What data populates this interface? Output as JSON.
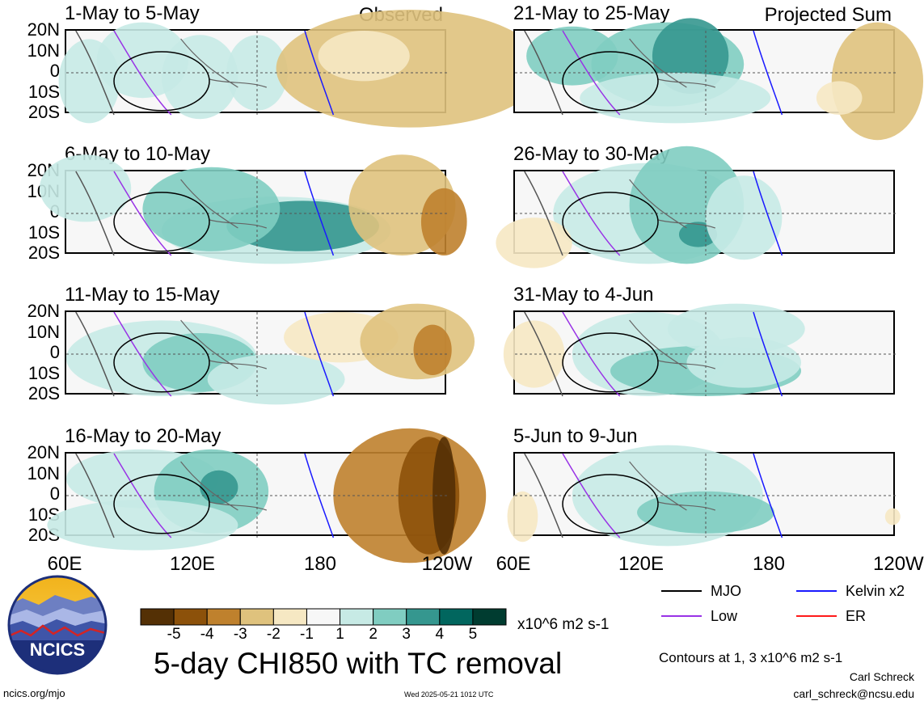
{
  "chart_data": [
    {
      "type": "heatmap",
      "title": "1-May to 5-May",
      "label": "Observed",
      "lat_ticks": [
        "20N",
        "10N",
        "0",
        "10S",
        "20S"
      ],
      "lon_ticks": [
        "60E",
        "120E",
        "180",
        "120W"
      ]
    },
    {
      "type": "heatmap",
      "title": "6-May to 10-May",
      "label": "",
      "lat_ticks": [
        "20N",
        "10N",
        "0",
        "10S",
        "20S"
      ],
      "lon_ticks": [
        "60E",
        "120E",
        "180",
        "120W"
      ]
    },
    {
      "type": "heatmap",
      "title": "11-May to 15-May",
      "label": "",
      "lat_ticks": [
        "20N",
        "10N",
        "0",
        "10S",
        "20S"
      ],
      "lon_ticks": [
        "60E",
        "120E",
        "180",
        "120W"
      ]
    },
    {
      "type": "heatmap",
      "title": "16-May to 20-May",
      "label": "",
      "lat_ticks": [
        "20N",
        "10N",
        "0",
        "10S",
        "20S"
      ],
      "lon_ticks": [
        "60E",
        "120E",
        "180",
        "120W"
      ]
    },
    {
      "type": "heatmap",
      "title": "21-May to 25-May",
      "label": "Projected Sum",
      "lat_ticks": [],
      "lon_ticks": [
        "60E",
        "120E",
        "180",
        "120W"
      ]
    },
    {
      "type": "heatmap",
      "title": "26-May to 30-May",
      "label": "",
      "lat_ticks": [],
      "lon_ticks": [
        "60E",
        "120E",
        "180",
        "120W"
      ]
    },
    {
      "type": "heatmap",
      "title": "31-May to 4-Jun",
      "label": "",
      "lat_ticks": [],
      "lon_ticks": [
        "60E",
        "120E",
        "180",
        "120W"
      ]
    },
    {
      "type": "heatmap",
      "title": "5-Jun to 9-Jun",
      "label": "",
      "lat_ticks": [],
      "lon_ticks": [
        "60E",
        "120E",
        "180",
        "120W"
      ]
    }
  ],
  "lon_axis": {
    "left": [
      "60E",
      "120E",
      "180",
      "120W"
    ],
    "right": [
      "60E",
      "120E",
      "180",
      "120W"
    ]
  },
  "colorbar": {
    "levels": [
      "-5",
      "-4",
      "-3",
      "-2",
      "-1",
      "1",
      "2",
      "3",
      "4",
      "5"
    ],
    "colors": [
      "#543005",
      "#8c510a",
      "#bf812d",
      "#dfc27d",
      "#f6e8c3",
      "#f7f7f7",
      "#c7eae5",
      "#80cdc1",
      "#35978f",
      "#01665e",
      "#003c30"
    ],
    "units": "x10^6 m2 s-1"
  },
  "main_title": "5-day CHI850 with TC removal",
  "legend": {
    "mjo": {
      "label": "MJO",
      "color": "#000000"
    },
    "kelvin": {
      "label": "Kelvin x2",
      "color": "#1a1aff"
    },
    "low": {
      "label": "Low",
      "color": "#9932e6"
    },
    "er": {
      "label": "ER",
      "color": "#ff1a1a"
    }
  },
  "contours_note": "Contours at 1, 3 x10^6 m2 s-1",
  "author": "Carl Schreck",
  "email": "carl_schreck@ncsu.edu",
  "website": "ncics.org/mjo",
  "timestamp": "Wed 2025-05-21 1012 UTC",
  "logo_text": "NCICS"
}
